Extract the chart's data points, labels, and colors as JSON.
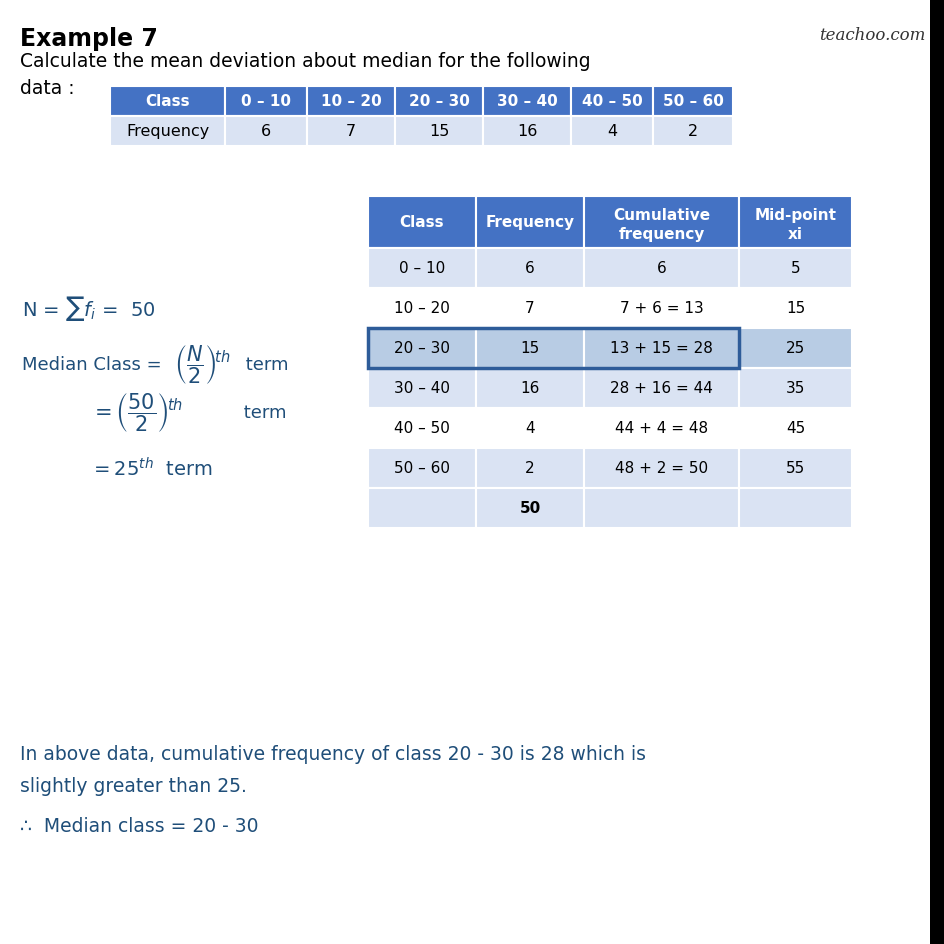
{
  "title": "Example 7",
  "watermark": "teachoo.com",
  "subtitle_line1": "Calculate the mean deviation about median for the following",
  "subtitle_line2": "data :",
  "table1_header": [
    "Class",
    "0 – 10",
    "10 – 20",
    "20 – 30",
    "30 – 40",
    "40 – 50",
    "50 – 60"
  ],
  "table1_row": [
    "Frequency",
    "6",
    "7",
    "15",
    "16",
    "4",
    "2"
  ],
  "table2_headers": [
    "Class",
    "Frequency",
    "Cumulative\nfrequency",
    "Mid-point\nxi"
  ],
  "table2_rows": [
    [
      "0 – 10",
      "6",
      "6",
      "5"
    ],
    [
      "10 – 20",
      "7",
      "7 + 6 = 13",
      "15"
    ],
    [
      "20 – 30",
      "15",
      "13 + 15 = 28",
      "25"
    ],
    [
      "30 – 40",
      "16",
      "28 + 16 = 44",
      "35"
    ],
    [
      "40 – 50",
      "4",
      "44 + 4 = 48",
      "45"
    ],
    [
      "50 – 60",
      "2",
      "48 + 2 = 50",
      "55"
    ],
    [
      "",
      "50",
      "",
      ""
    ]
  ],
  "highlighted_row": 2,
  "header_bg": "#4472C4",
  "header_text": "#FFFFFF",
  "row_bg_light": "#DAE3F3",
  "row_bg_white": "#FFFFFF",
  "highlight_row_bg": "#B8CCE4",
  "highlight_border": "#2E5C99",
  "formula_color": "#1F4E79",
  "bottom_text_color": "#1F4E79",
  "formula_bottom1": "In above data, cumulative frequency of class 20 - 30 is 28 which is",
  "formula_bottom2": "slightly greater than 25.",
  "formula_bottom3": "∴  Median class = 20 - 30"
}
